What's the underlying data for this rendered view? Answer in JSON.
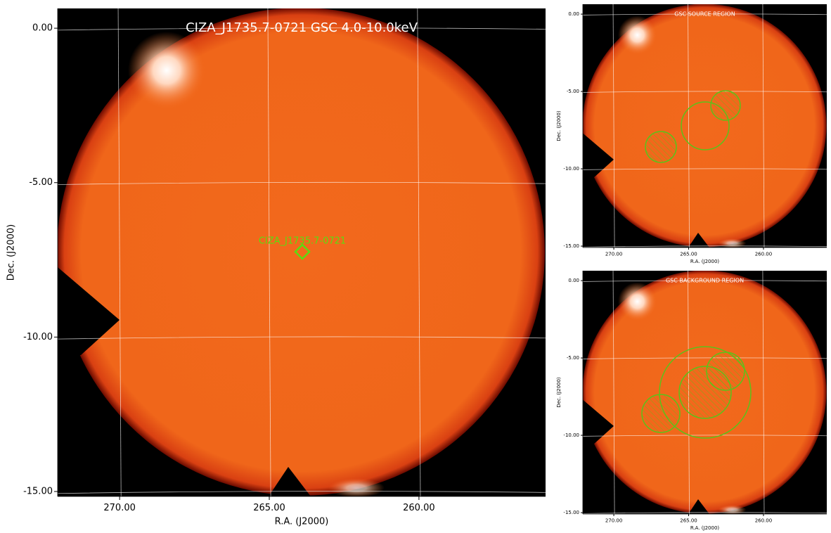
{
  "panels": [
    {
      "title": "CIZA_J1735.7-0721 GSC 4.0-10.0keV",
      "source_label": "CIZA_J1735.7-0721",
      "xlabel": "R.A. (J2000)",
      "ylabel": "Dec. (J2000)",
      "xlim": [
        272.07,
        255.77
      ],
      "ylim": [
        -15.16,
        0.64
      ],
      "xticks": [
        {
          "value": 270,
          "label": "270.00"
        },
        {
          "value": 265,
          "label": "265.00"
        },
        {
          "value": 260,
          "label": "260.00"
        }
      ],
      "yticks": [
        {
          "value": 0,
          "label": "0.00"
        },
        {
          "value": -5,
          "label": "-5.00"
        },
        {
          "value": -10,
          "label": "-10.00"
        },
        {
          "value": -15,
          "label": "-15.00"
        }
      ]
    },
    {
      "title": "GSC SOURCE REGION",
      "xlabel": "R.A. (J2000)",
      "ylabel": "Dec. (J2000)",
      "xlim": [
        272.07,
        255.77
      ],
      "ylim": [
        -15.09,
        0.64
      ],
      "xticks": [
        {
          "value": 270,
          "label": "270.00"
        },
        {
          "value": 265,
          "label": "265.00"
        },
        {
          "value": 260,
          "label": "260.00"
        }
      ],
      "yticks": [
        {
          "value": 0,
          "label": "0.00"
        },
        {
          "value": -5,
          "label": "-5.00"
        },
        {
          "value": -10,
          "label": "-10.00"
        },
        {
          "value": -15,
          "label": "-15.00"
        }
      ]
    },
    {
      "title": "GSC BACKGROUND REGION",
      "xlabel": "R.A. (J2000)",
      "ylabel": "Dec. (J2000)",
      "xlim": [
        272.07,
        255.77
      ],
      "ylim": [
        -15.09,
        0.64
      ],
      "xticks": [
        {
          "value": 270,
          "label": "270.00"
        },
        {
          "value": 265,
          "label": "265.00"
        },
        {
          "value": 260,
          "label": "260.00"
        }
      ],
      "yticks": [
        {
          "value": 0,
          "label": "0.00"
        },
        {
          "value": -5,
          "label": "-5.00"
        },
        {
          "value": -10,
          "label": "-10.00"
        },
        {
          "value": -15,
          "label": "-15.00"
        }
      ]
    }
  ]
}
